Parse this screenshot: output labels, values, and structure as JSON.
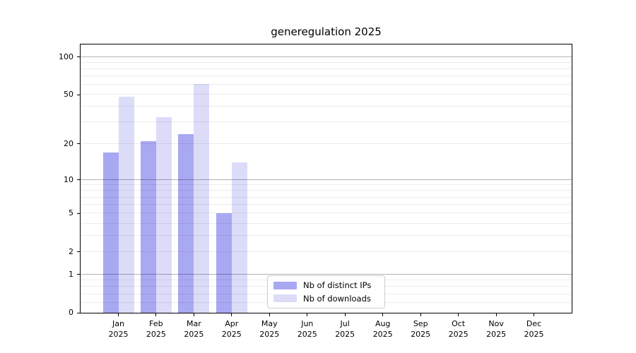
{
  "chart_data": {
    "type": "bar",
    "title": "generegulation 2025",
    "x_months": [
      "Jan",
      "Feb",
      "Mar",
      "Apr",
      "May",
      "Jun",
      "Jul",
      "Aug",
      "Sep",
      "Oct",
      "Nov",
      "Dec"
    ],
    "x_year": "2025",
    "series": [
      {
        "name": "Nb of distinct IPs",
        "color": "#a8a8f3",
        "values": [
          17,
          21,
          24,
          5,
          0,
          0,
          0,
          0,
          0,
          0,
          0,
          0
        ]
      },
      {
        "name": "Nb of downloads",
        "color": "#dcdcf9",
        "values": [
          48,
          33,
          61,
          14,
          0,
          0,
          0,
          0,
          0,
          0,
          0,
          0
        ]
      }
    ],
    "y_ticks": [
      0,
      1,
      2,
      5,
      10,
      20,
      50,
      100
    ],
    "y_scale": "log1p",
    "ylim": [
      0,
      126
    ],
    "grid": "horizontal",
    "legend_position": "lower center"
  },
  "colors": {
    "major_grid": "#b8b8b8",
    "minor_grid": "#ececec",
    "axis": "#000000",
    "background": "#ffffff"
  }
}
